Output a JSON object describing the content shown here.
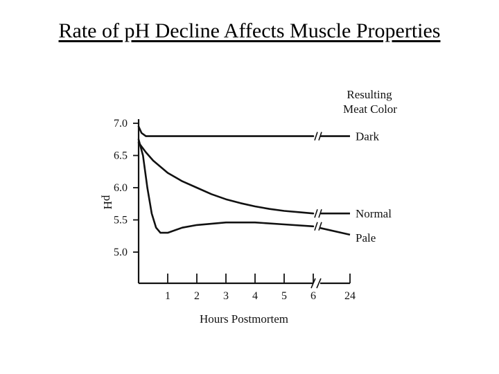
{
  "slide": {
    "title": "Rate of pH Decline Affects Muscle Properties"
  },
  "chart_data": {
    "type": "line",
    "xlabel": "Hours Postmortem",
    "ylabel": "pH",
    "legend_title_line1": "Resulting",
    "legend_title_line2": "Meat Color",
    "x_ticks": [
      "1",
      "2",
      "3",
      "4",
      "5",
      "6",
      "24"
    ],
    "y_ticks": [
      "7.0",
      "6.5",
      "6.0",
      "5.5",
      "5.0"
    ],
    "ylim": [
      4.75,
      7.0
    ],
    "axis_break": "between 6 and 24 hours",
    "series": [
      {
        "name": "Dark",
        "x": [
          0,
          0.1,
          0.25,
          0.5,
          1,
          2,
          3,
          4,
          5,
          6,
          24
        ],
        "y": [
          6.95,
          6.85,
          6.8,
          6.8,
          6.8,
          6.8,
          6.8,
          6.8,
          6.8,
          6.8,
          6.8
        ]
      },
      {
        "name": "Normal",
        "x": [
          0,
          0.25,
          0.5,
          1,
          1.5,
          2,
          2.5,
          3,
          3.5,
          4,
          4.5,
          5,
          5.5,
          6,
          24
        ],
        "y": [
          6.7,
          6.55,
          6.42,
          6.23,
          6.1,
          6.0,
          5.9,
          5.82,
          5.76,
          5.71,
          5.67,
          5.64,
          5.62,
          5.6,
          5.6
        ]
      },
      {
        "name": "Pale",
        "x": [
          0,
          0.15,
          0.3,
          0.45,
          0.6,
          0.75,
          1,
          1.5,
          2,
          3,
          4,
          5,
          6,
          24
        ],
        "y": [
          6.75,
          6.5,
          6.0,
          5.6,
          5.38,
          5.3,
          5.3,
          5.38,
          5.42,
          5.46,
          5.46,
          5.43,
          5.4,
          5.27
        ]
      }
    ]
  }
}
